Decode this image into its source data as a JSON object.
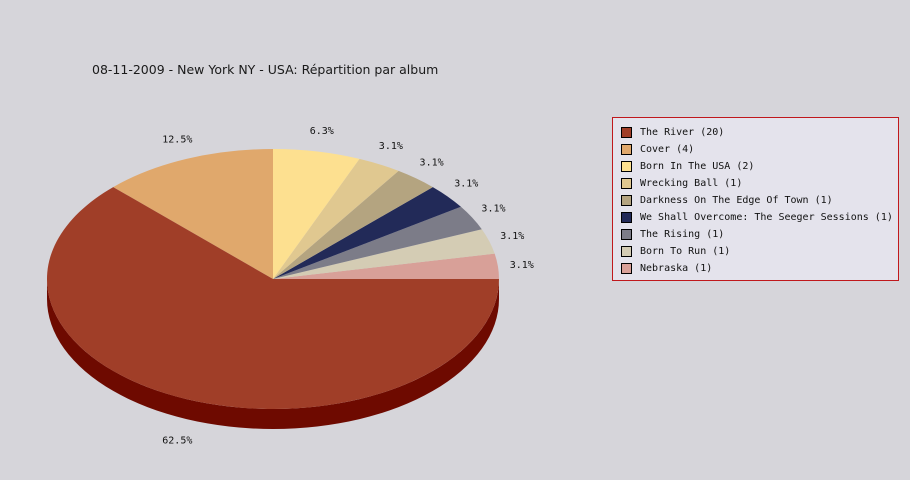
{
  "chart_data": {
    "type": "pie",
    "title": "08-11-2009 - New York NY - USA:  Répartition par album",
    "slices": [
      {
        "label": "The River (20)",
        "value": 20,
        "pct_label": "62.5%",
        "color": "#a03e28",
        "side_color": "#6e0a00"
      },
      {
        "label": "Cover (4)",
        "value": 4,
        "pct_label": "12.5%",
        "color": "#e0a86c",
        "side_color": "#b07840"
      },
      {
        "label": "Born In The USA (2)",
        "value": 2,
        "pct_label": "6.3%",
        "color": "#fde090",
        "side_color": "#ccb060"
      },
      {
        "label": "Wrecking Ball (1)",
        "value": 1,
        "pct_label": "3.1%",
        "color": "#e0c890",
        "side_color": "#b09860"
      },
      {
        "label": "Darkness On The Edge Of Town (1)",
        "value": 1,
        "pct_label": "3.1%",
        "color": "#b4a480",
        "side_color": "#847450"
      },
      {
        "label": "We Shall Overcome: The Seeger Sessions (1)",
        "value": 1,
        "pct_label": "3.1%",
        "color": "#222a58",
        "side_color": "#10143a"
      },
      {
        "label": "The Rising (1)",
        "value": 1,
        "pct_label": "3.1%",
        "color": "#7c7c88",
        "side_color": "#50505a"
      },
      {
        "label": "Born To Run (1)",
        "value": 1,
        "pct_label": "3.1%",
        "color": "#d4ccb4",
        "side_color": "#a49c84"
      },
      {
        "label": "Nebraska (1)",
        "value": 1,
        "pct_label": "3.1%",
        "color": "#d8a098",
        "side_color": "#a87068"
      }
    ],
    "legend_position": "right"
  },
  "legend_border_color": "#c0181c",
  "background_color": "#d6d5da"
}
